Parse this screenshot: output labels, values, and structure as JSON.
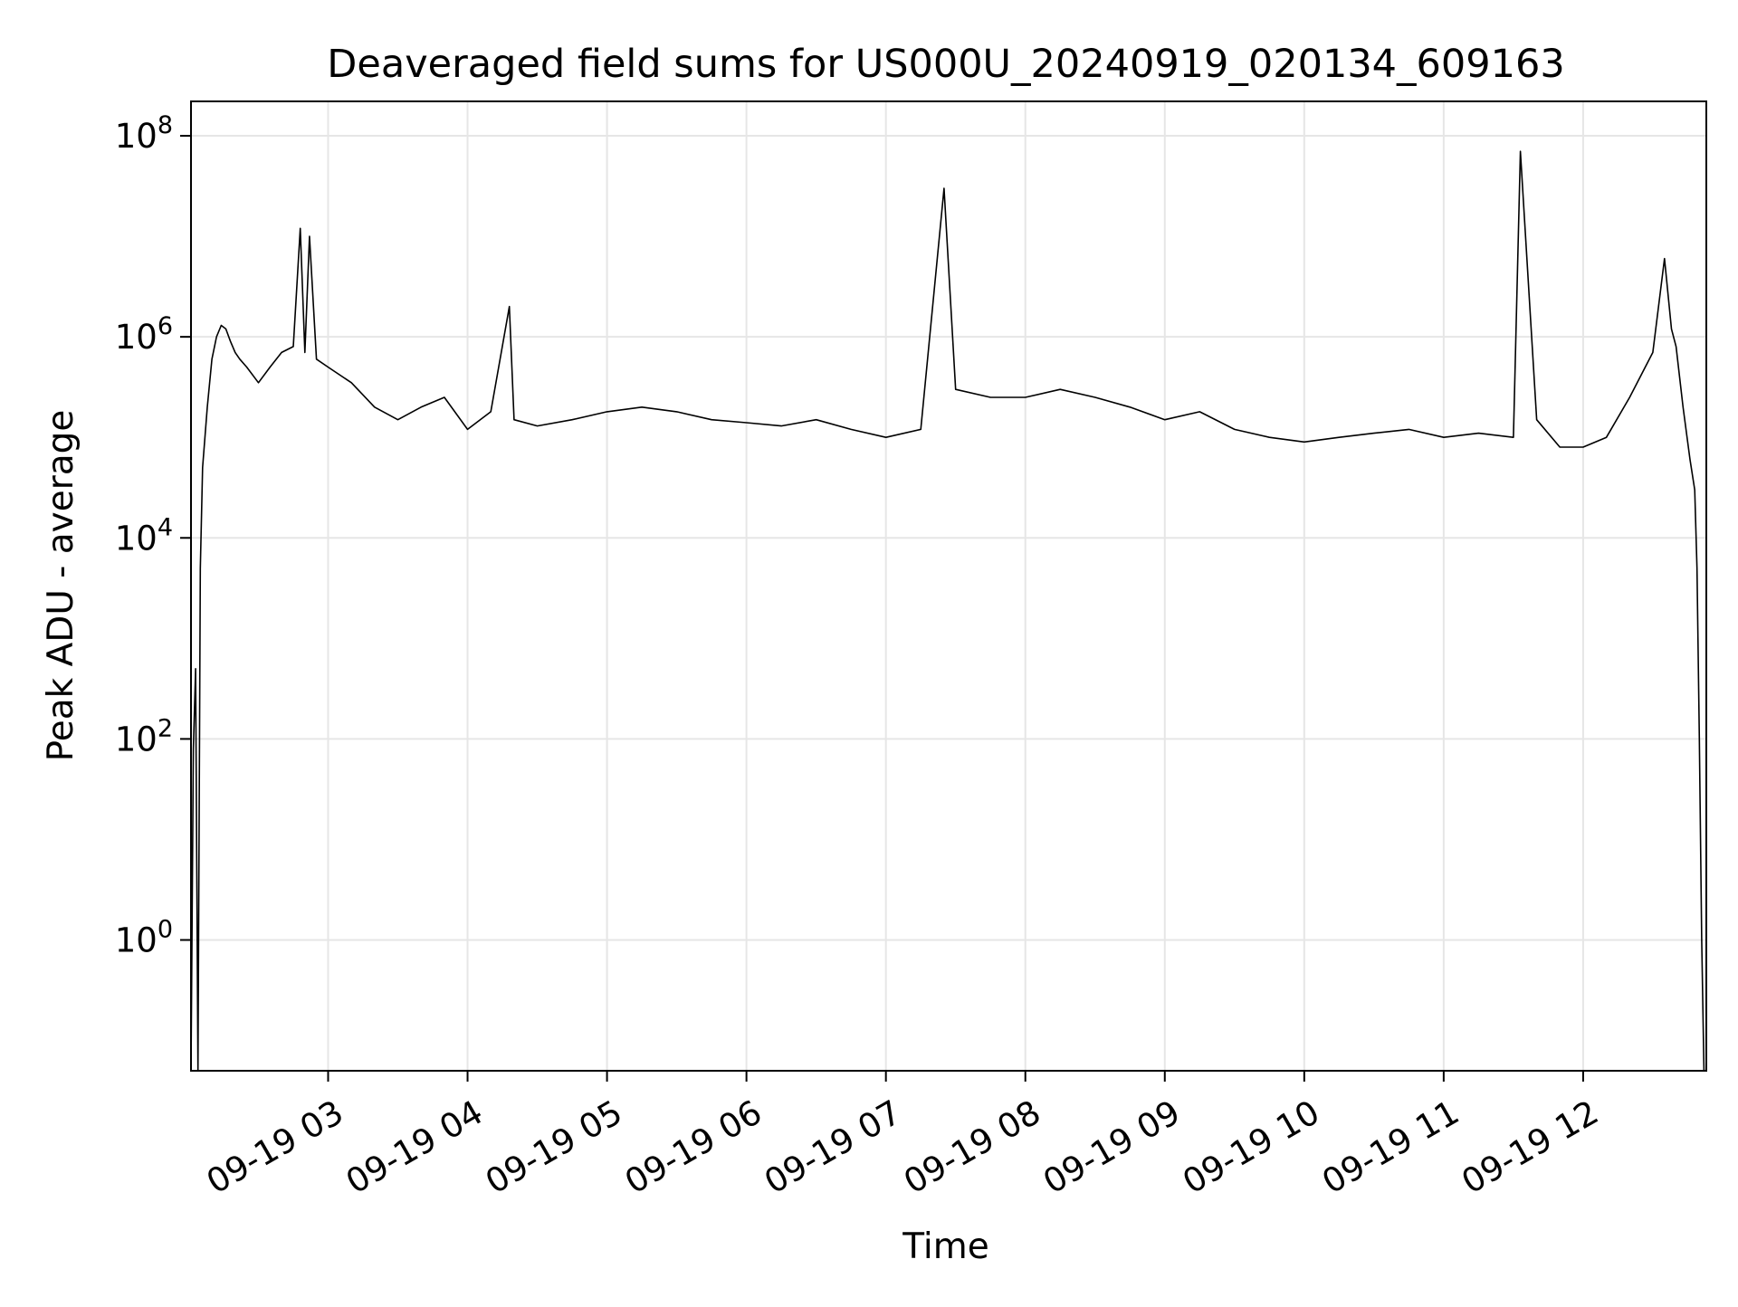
{
  "chart_data": {
    "type": "line",
    "title": "Deaveraged field sums for US000U_20240919_020134_609163",
    "xlabel": "Time",
    "ylabel": "Peak ADU - average",
    "yscale": "log",
    "ylim": [
      0.05,
      220000000.0
    ],
    "xlim": [
      "2024-09-19 02:01",
      "2024-09-19 12:53"
    ],
    "grid": true,
    "line_color": "#000000",
    "grid_color": "#e6e6e6",
    "x_ticks": [
      {
        "t": "2024-09-19 03:00",
        "label": "09-19 03"
      },
      {
        "t": "2024-09-19 04:00",
        "label": "09-19 04"
      },
      {
        "t": "2024-09-19 05:00",
        "label": "09-19 05"
      },
      {
        "t": "2024-09-19 06:00",
        "label": "09-19 06"
      },
      {
        "t": "2024-09-19 07:00",
        "label": "09-19 07"
      },
      {
        "t": "2024-09-19 08:00",
        "label": "09-19 08"
      },
      {
        "t": "2024-09-19 09:00",
        "label": "09-19 09"
      },
      {
        "t": "2024-09-19 10:00",
        "label": "09-19 10"
      },
      {
        "t": "2024-09-19 11:00",
        "label": "09-19 11"
      },
      {
        "t": "2024-09-19 12:00",
        "label": "09-19 12"
      }
    ],
    "y_ticks": [
      {
        "value": 1,
        "base": "10",
        "exp": "0"
      },
      {
        "value": 100,
        "base": "10",
        "exp": "2"
      },
      {
        "value": 10000,
        "base": "10",
        "exp": "4"
      },
      {
        "value": 1000000,
        "base": "10",
        "exp": "6"
      },
      {
        "value": 100000000,
        "base": "10",
        "exp": "8"
      }
    ],
    "series": [
      {
        "x": [
          "2024-09-19 02:01",
          "2024-09-19 02:02",
          "2024-09-19 02:03",
          "2024-09-19 02:04",
          "2024-09-19 02:05",
          "2024-09-19 02:06",
          "2024-09-19 02:08",
          "2024-09-19 02:10",
          "2024-09-19 02:12",
          "2024-09-19 02:14",
          "2024-09-19 02:16",
          "2024-09-19 02:18",
          "2024-09-19 02:20",
          "2024-09-19 02:22",
          "2024-09-19 02:25",
          "2024-09-19 02:30",
          "2024-09-19 02:35",
          "2024-09-19 02:40",
          "2024-09-19 02:45",
          "2024-09-19 02:48",
          "2024-09-19 02:50",
          "2024-09-19 02:52",
          "2024-09-19 02:55",
          "2024-09-19 03:00",
          "2024-09-19 03:10",
          "2024-09-19 03:20",
          "2024-09-19 03:30",
          "2024-09-19 03:40",
          "2024-09-19 03:50",
          "2024-09-19 04:00",
          "2024-09-19 04:10",
          "2024-09-19 04:18",
          "2024-09-19 04:20",
          "2024-09-19 04:30",
          "2024-09-19 04:45",
          "2024-09-19 05:00",
          "2024-09-19 05:15",
          "2024-09-19 05:30",
          "2024-09-19 05:45",
          "2024-09-19 06:00",
          "2024-09-19 06:15",
          "2024-09-19 06:30",
          "2024-09-19 06:45",
          "2024-09-19 07:00",
          "2024-09-19 07:15",
          "2024-09-19 07:25",
          "2024-09-19 07:30",
          "2024-09-19 07:45",
          "2024-09-19 08:00",
          "2024-09-19 08:15",
          "2024-09-19 08:30",
          "2024-09-19 08:45",
          "2024-09-19 09:00",
          "2024-09-19 09:15",
          "2024-09-19 09:30",
          "2024-09-19 09:45",
          "2024-09-19 10:00",
          "2024-09-19 10:15",
          "2024-09-19 10:30",
          "2024-09-19 10:45",
          "2024-09-19 11:00",
          "2024-09-19 11:15",
          "2024-09-19 11:30",
          "2024-09-19 11:33",
          "2024-09-19 11:40",
          "2024-09-19 11:50",
          "2024-09-19 12:00",
          "2024-09-19 12:10",
          "2024-09-19 12:20",
          "2024-09-19 12:30",
          "2024-09-19 12:35",
          "2024-09-19 12:38",
          "2024-09-19 12:40",
          "2024-09-19 12:43",
          "2024-09-19 12:46",
          "2024-09-19 12:48",
          "2024-09-19 12:49",
          "2024-09-19 12:50",
          "2024-09-19 12:51",
          "2024-09-19 12:52"
        ],
        "y": [
          0.05,
          80,
          500,
          0.05,
          5000,
          50000,
          200000,
          600000,
          1000000,
          1300000,
          1200000,
          900000,
          700000,
          600000,
          500000,
          350000,
          500000,
          700000,
          800000,
          12000000,
          700000,
          10000000,
          600000,
          500000,
          350000,
          200000,
          150000,
          200000,
          250000,
          120000,
          180000,
          2000000,
          150000,
          130000,
          150000,
          180000,
          200000,
          180000,
          150000,
          140000,
          130000,
          150000,
          120000,
          100000,
          120000,
          30000000,
          300000,
          250000,
          250000,
          300000,
          250000,
          200000,
          150000,
          180000,
          120000,
          100000,
          90000,
          100000,
          110000,
          120000,
          100000,
          110000,
          100000,
          70000000,
          150000,
          80000,
          80000,
          100000,
          250000,
          700000,
          6000000,
          1200000,
          800000,
          200000,
          60000,
          30000,
          5000,
          100,
          1,
          0.05
        ]
      }
    ]
  }
}
